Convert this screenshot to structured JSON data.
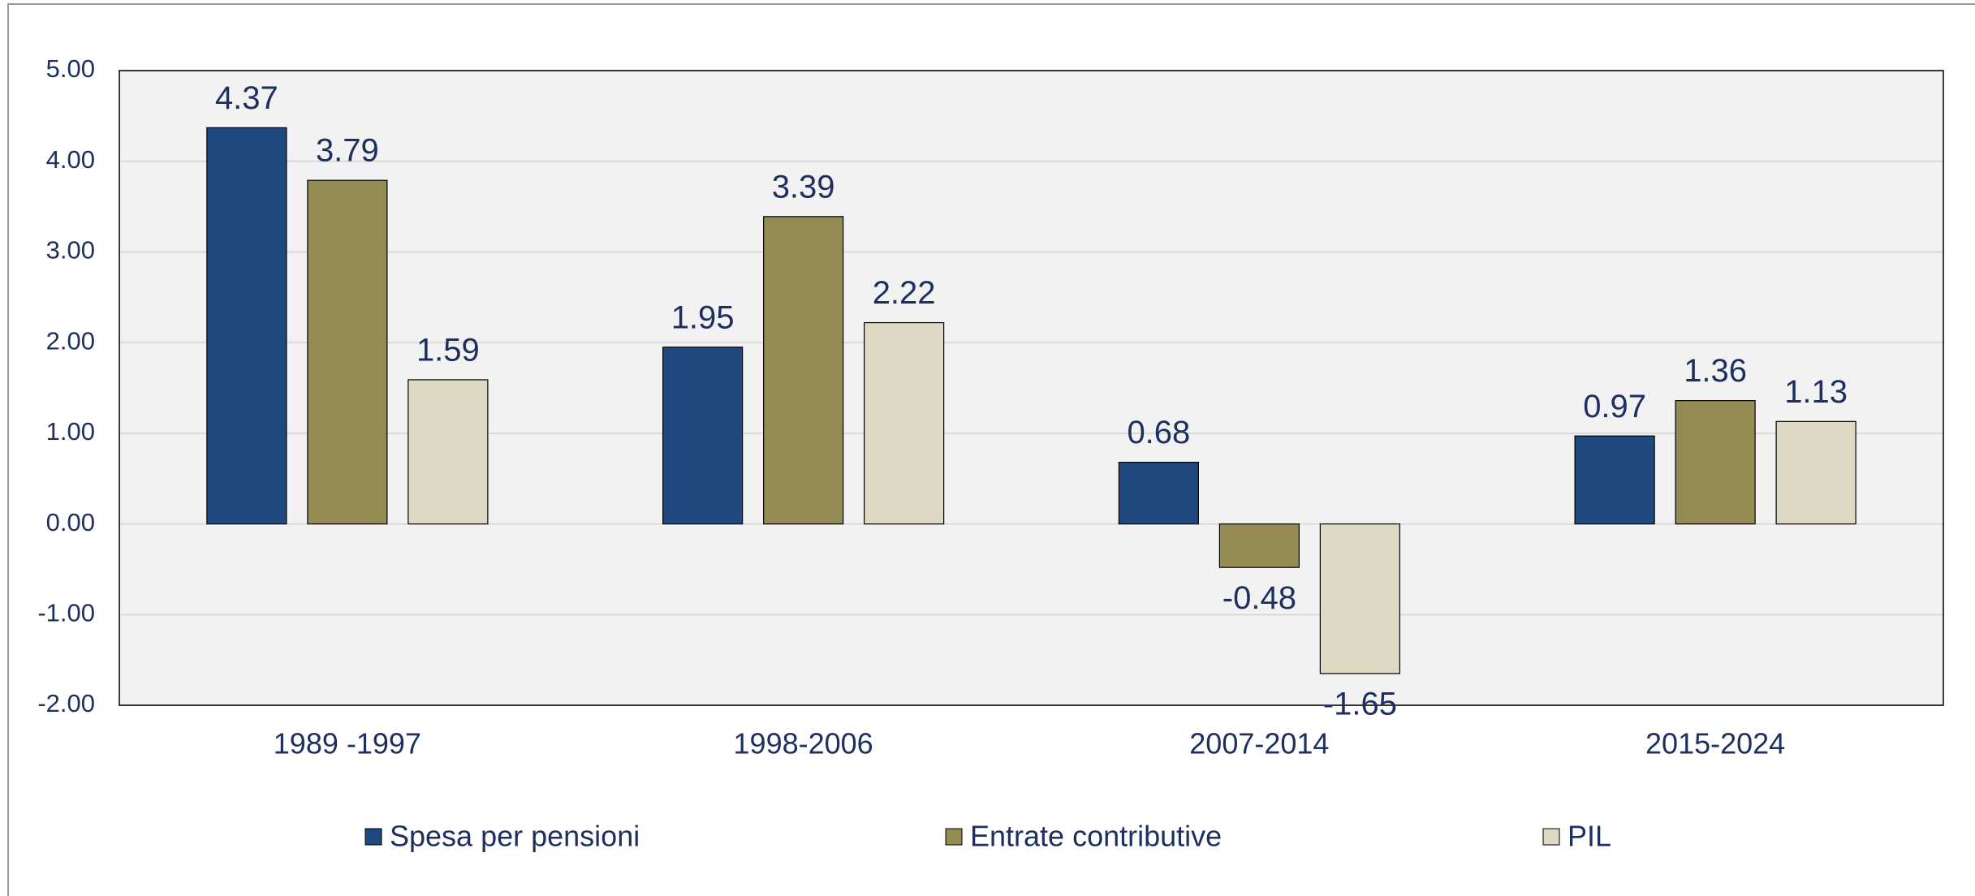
{
  "chart_data": {
    "type": "bar",
    "categories": [
      "1989 -1997",
      "1998-2006",
      "2007-2014",
      "2015-2024"
    ],
    "series": [
      {
        "name": "Spesa per pensioni",
        "color": "#1f497d",
        "values": [
          4.37,
          1.95,
          0.68,
          0.97
        ]
      },
      {
        "name": "Entrate contributive",
        "color": "#948a54",
        "values": [
          3.79,
          3.39,
          -0.48,
          1.36
        ]
      },
      {
        "name": "PIL",
        "color": "#ddd9c4",
        "values": [
          1.59,
          2.22,
          -1.65,
          1.13
        ]
      }
    ],
    "ylim": [
      -2,
      5
    ],
    "yticks": [
      {
        "value": -2,
        "label": "-2.00"
      },
      {
        "value": -1,
        "label": "-1.00"
      },
      {
        "value": 0,
        "label": "0.00"
      },
      {
        "value": 1,
        "label": "1.00"
      },
      {
        "value": 2,
        "label": "2.00"
      },
      {
        "value": 3,
        "label": "3.00"
      },
      {
        "value": 4,
        "label": "4.00"
      },
      {
        "value": 5,
        "label": "5.00"
      }
    ],
    "grid": true,
    "legend": "bottom"
  }
}
